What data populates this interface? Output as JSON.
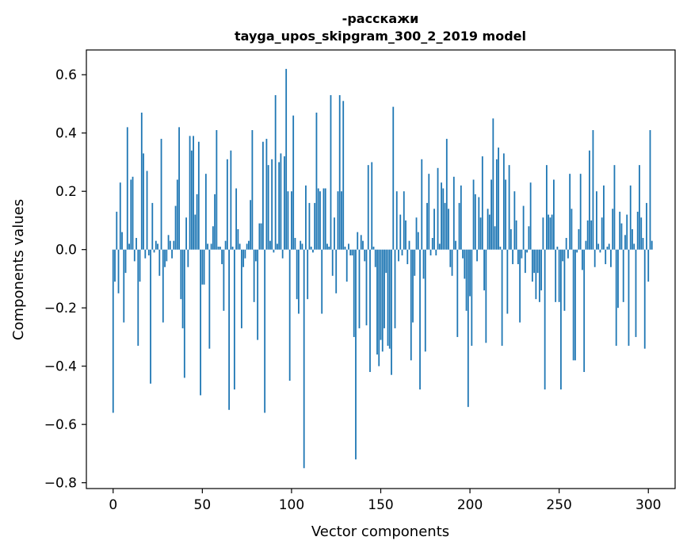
{
  "chart_data": {
    "type": "bar",
    "title": "-расскажи",
    "subtitle": "tayga_upos_skipgram_300_2_2019 model",
    "xlabel": "Vector components",
    "ylabel": "Components values",
    "xlim": [
      -15,
      315
    ],
    "ylim": [
      -0.82,
      0.685
    ],
    "xticks": [
      0,
      50,
      100,
      150,
      200,
      250,
      300
    ],
    "xtick_labels": [
      "0",
      "50",
      "100",
      "150",
      "200",
      "250",
      "300"
    ],
    "yticks": [
      -0.8,
      -0.6,
      -0.4,
      -0.2,
      0.0,
      0.2,
      0.4,
      0.6
    ],
    "ytick_labels": [
      "−0.8",
      "−0.6",
      "−0.4",
      "−0.2",
      "0.0",
      "0.2",
      "0.4",
      "0.6"
    ],
    "bar_color": "#1f77b4",
    "grid": false,
    "values": [
      -0.56,
      -0.11,
      0.13,
      -0.15,
      0.23,
      0.06,
      -0.25,
      -0.08,
      0.42,
      0.02,
      0.24,
      0.25,
      -0.04,
      0.04,
      -0.33,
      -0.11,
      0.47,
      0.33,
      -0.03,
      0.27,
      -0.02,
      -0.46,
      0.16,
      -0.01,
      0.03,
      0.02,
      -0.09,
      0.38,
      -0.25,
      -0.06,
      -0.04,
      0.05,
      0.03,
      -0.03,
      0.03,
      0.15,
      0.24,
      0.42,
      -0.17,
      -0.27,
      -0.44,
      0.11,
      -0.06,
      0.39,
      0.34,
      0.39,
      0.12,
      0.19,
      0.37,
      -0.5,
      -0.12,
      -0.12,
      0.26,
      0.02,
      -0.34,
      0.02,
      0.08,
      0.19,
      0.41,
      0.01,
      0.01,
      -0.05,
      -0.21,
      0.03,
      0.31,
      -0.55,
      0.34,
      0.01,
      -0.48,
      0.21,
      0.07,
      0.02,
      -0.27,
      -0.06,
      -0.03,
      0.02,
      0.03,
      0.17,
      0.41,
      -0.18,
      -0.04,
      -0.31,
      0.09,
      0.09,
      0.37,
      -0.56,
      0.38,
      0.29,
      0.03,
      0.31,
      -0.01,
      0.53,
      0.02,
      0.3,
      0.33,
      -0.03,
      0.32,
      0.62,
      0.2,
      -0.45,
      0.2,
      0.46,
      0.04,
      -0.17,
      -0.22,
      0.03,
      0.02,
      -0.75,
      0.22,
      -0.17,
      0.16,
      0.01,
      -0.01,
      0.16,
      0.47,
      0.21,
      0.2,
      -0.22,
      0.21,
      0.21,
      0.02,
      0.01,
      0.53,
      -0.09,
      0.11,
      -0.15,
      0.2,
      0.53,
      0.2,
      0.51,
      0.01,
      -0.11,
      0.02,
      -0.02,
      -0.02,
      -0.3,
      -0.72,
      0.06,
      -0.27,
      0.05,
      0.03,
      -0.04,
      -0.26,
      0.29,
      -0.42,
      0.3,
      0.01,
      -0.06,
      -0.36,
      -0.4,
      -0.31,
      -0.35,
      -0.27,
      -0.08,
      -0.33,
      -0.34,
      -0.43,
      0.49,
      -0.27,
      0.2,
      -0.04,
      0.12,
      -0.02,
      0.2,
      0.1,
      -0.05,
      0.03,
      -0.38,
      -0.25,
      -0.09,
      0.11,
      0.06,
      -0.48,
      0.31,
      -0.1,
      -0.35,
      0.16,
      0.26,
      -0.02,
      0.04,
      0.14,
      -0.02,
      0.28,
      0.02,
      0.23,
      0.21,
      0.16,
      0.38,
      0.14,
      -0.06,
      -0.09,
      0.25,
      0.03,
      -0.3,
      0.16,
      0.22,
      -0.03,
      -0.1,
      -0.21,
      -0.54,
      -0.16,
      -0.33,
      0.24,
      0.19,
      -0.04,
      0.18,
      0.11,
      0.32,
      -0.14,
      -0.32,
      0.14,
      0.12,
      0.24,
      0.45,
      0.08,
      0.31,
      0.35,
      0.01,
      -0.33,
      0.33,
      0.24,
      -0.22,
      0.29,
      0.07,
      -0.05,
      0.2,
      0.1,
      -0.05,
      -0.25,
      -0.03,
      0.15,
      -0.08,
      -0.01,
      0.08,
      0.23,
      -0.11,
      -0.08,
      -0.17,
      -0.08,
      -0.18,
      -0.14,
      0.11,
      -0.48,
      0.29,
      0.12,
      0.11,
      0.12,
      0.24,
      -0.18,
      0.01,
      -0.18,
      -0.48,
      -0.04,
      -0.21,
      0.04,
      -0.03,
      0.26,
      0.14,
      -0.38,
      -0.38,
      -0.01,
      0.07,
      0.26,
      -0.07,
      -0.42,
      0.03,
      0.1,
      0.34,
      0.1,
      0.41,
      -0.06,
      0.2,
      0.02,
      -0.01,
      0.11,
      0.22,
      -0.05,
      0.01,
      0.02,
      -0.06,
      0.14,
      0.29,
      -0.33,
      -0.2,
      0.13,
      0.09,
      -0.18,
      0.05,
      0.12,
      -0.33,
      0.22,
      0.07,
      0.02,
      -0.3,
      0.13,
      0.29,
      0.11,
      0.04,
      -0.34,
      0.16,
      -0.11,
      0.41,
      0.03
    ]
  }
}
